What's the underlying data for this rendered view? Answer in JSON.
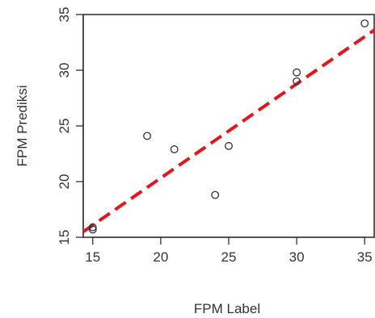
{
  "chart_data": {
    "type": "scatter",
    "title": "",
    "xlabel": "FPM Label",
    "ylabel": "FPM Prediksi",
    "xlim": [
      14.3,
      35.7
    ],
    "ylim": [
      15,
      35
    ],
    "x_ticks": [
      15,
      20,
      25,
      30,
      35
    ],
    "y_ticks": [
      15,
      20,
      25,
      30,
      35
    ],
    "grid": false,
    "legend": "none",
    "points": [
      {
        "x": 15,
        "y": 15.9
      },
      {
        "x": 15,
        "y": 15.7
      },
      {
        "x": 19,
        "y": 24.1
      },
      {
        "x": 21,
        "y": 22.9
      },
      {
        "x": 24,
        "y": 18.8
      },
      {
        "x": 25,
        "y": 23.2
      },
      {
        "x": 30,
        "y": 29.8
      },
      {
        "x": 30,
        "y": 29.0
      },
      {
        "x": 35,
        "y": 34.2
      }
    ],
    "fit_line": {
      "x": [
        14.3,
        35.7
      ],
      "y": [
        15.5,
        33.6
      ]
    },
    "colors": {
      "points": "#333333",
      "fit_line": "#e8131b",
      "axis": "#333333"
    }
  }
}
